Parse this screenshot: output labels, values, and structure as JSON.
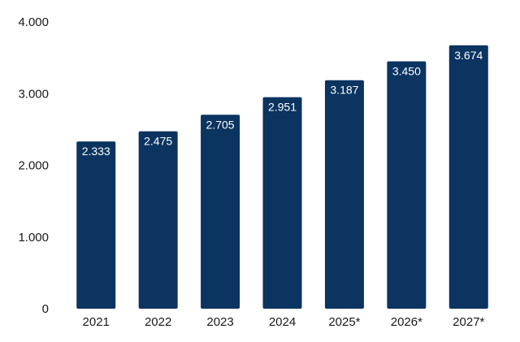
{
  "chart_data": {
    "type": "bar",
    "categories": [
      "2021",
      "2022",
      "2023",
      "2024",
      "2025*",
      "2026*",
      "2027*"
    ],
    "values": [
      2333,
      2475,
      2705,
      2951,
      3187,
      3450,
      3674
    ],
    "data_labels": [
      "2.333",
      "2.475",
      "2.705",
      "2.951",
      "3.187",
      "3.450",
      "3.674"
    ],
    "y_ticks": [
      0,
      1000,
      2000,
      3000,
      4000
    ],
    "y_tick_labels": [
      "0",
      "1.000",
      "2.000",
      "3.000",
      "4.000"
    ],
    "title": "",
    "xlabel": "",
    "ylabel": "",
    "ylim": [
      0,
      4000
    ],
    "grid": false,
    "legend": "none",
    "bar_color": "#0b3460"
  }
}
